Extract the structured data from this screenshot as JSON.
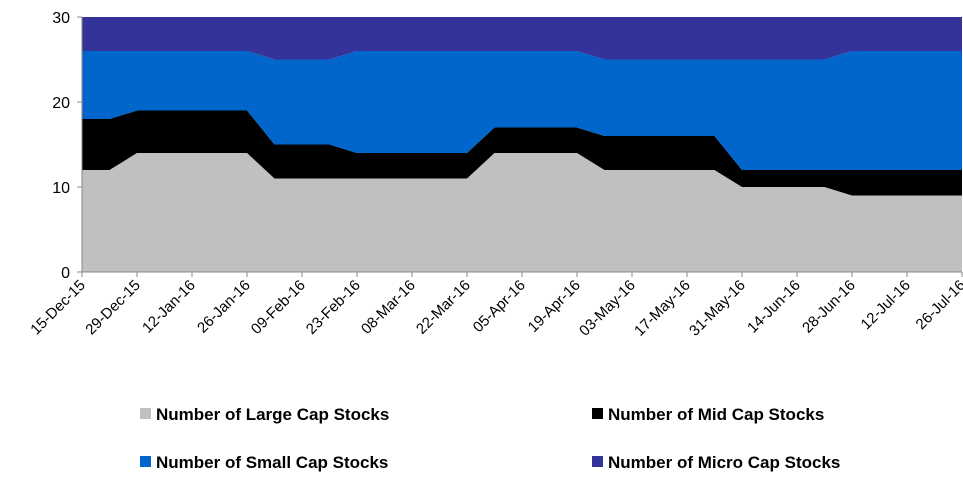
{
  "chart_data": {
    "type": "stacked_area",
    "categories": [
      "15-Dec-15",
      null,
      "29-Dec-15",
      null,
      "12-Jan-16",
      null,
      "26-Jan-16",
      null,
      "09-Feb-16",
      null,
      "23-Feb-16",
      null,
      "08-Mar-16",
      null,
      "22-Mar-16",
      null,
      "05-Apr-16",
      null,
      "19-Apr-16",
      null,
      "03-May-16",
      null,
      "17-May-16",
      null,
      "31-May-16",
      null,
      "14-Jun-16",
      null,
      "28-Jun-16",
      null,
      "12-Jul-16",
      null,
      "26-Jul-16"
    ],
    "series": [
      {
        "name": "Number of Large Cap Stocks",
        "color": "#c0c0c0",
        "values": [
          12,
          12,
          14,
          14,
          14,
          14,
          14,
          11,
          11,
          11,
          11,
          11,
          11,
          11,
          11,
          14,
          14,
          14,
          14,
          12,
          12,
          12,
          12,
          12,
          10,
          10,
          10,
          10,
          9,
          9,
          9,
          9,
          9
        ]
      },
      {
        "name": "Number of Mid Cap Stocks",
        "color": "#000000",
        "values": [
          6,
          6,
          5,
          5,
          5,
          5,
          5,
          4,
          4,
          4,
          3,
          3,
          3,
          3,
          3,
          3,
          3,
          3,
          3,
          4,
          4,
          4,
          4,
          4,
          2,
          2,
          2,
          2,
          3,
          3,
          3,
          3,
          3
        ]
      },
      {
        "name": "Number of Small Cap Stocks",
        "color": "#0066cc",
        "values": [
          8,
          8,
          7,
          7,
          7,
          7,
          7,
          10,
          10,
          10,
          12,
          12,
          12,
          12,
          12,
          9,
          9,
          9,
          9,
          9,
          9,
          9,
          9,
          9,
          13,
          13,
          13,
          13,
          14,
          14,
          14,
          14,
          14
        ]
      },
      {
        "name": "Number of Micro Cap Stocks",
        "color": "#333399",
        "values": [
          4,
          4,
          4,
          4,
          4,
          4,
          4,
          5,
          5,
          5,
          4,
          4,
          4,
          4,
          4,
          4,
          4,
          4,
          4,
          5,
          5,
          5,
          5,
          5,
          5,
          5,
          5,
          5,
          4,
          4,
          4,
          4,
          4
        ]
      }
    ],
    "ylim": [
      0,
      30
    ],
    "yticks": [
      0,
      10,
      20,
      30
    ],
    "grid": false
  }
}
